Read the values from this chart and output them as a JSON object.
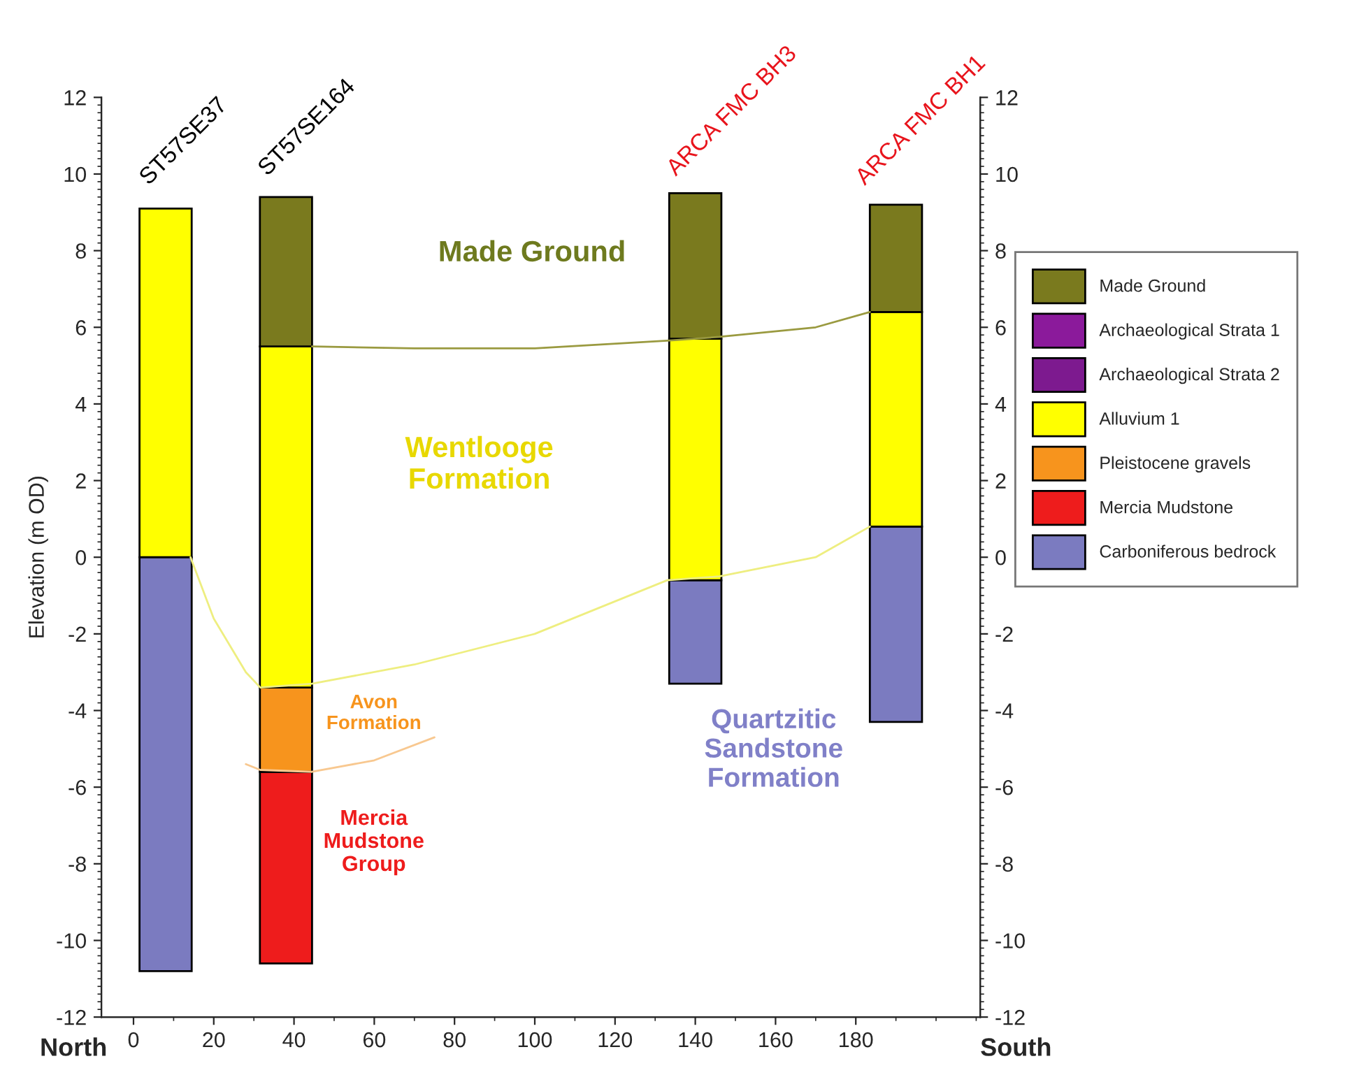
{
  "chart_data": {
    "type": "bar",
    "ylabel": "Elevation (m OD)",
    "x": [
      8,
      38,
      140,
      190
    ],
    "series": [
      {
        "name": "Carboniferous bedrock",
        "color": "#7b7bc0",
        "base": [
          -10.8,
          null,
          -3.3,
          -4.3
        ],
        "values": [
          10.8,
          null,
          2.7,
          5.1
        ]
      },
      {
        "name": "Mercia Mudstone",
        "color": "#ee1c1c",
        "base": [
          null,
          -10.6,
          null,
          null
        ],
        "values": [
          null,
          5.0,
          null,
          null
        ]
      },
      {
        "name": "Pleistocene gravels",
        "color": "#f7941d",
        "base": [
          null,
          -5.6,
          null,
          null
        ],
        "values": [
          null,
          2.2,
          null,
          null
        ]
      },
      {
        "name": "Alluvium 1",
        "color": "#ffff00",
        "base": [
          0,
          -3.4,
          -0.6,
          0.8
        ],
        "values": [
          9.1,
          8.9,
          6.3,
          5.6
        ]
      },
      {
        "name": "Archaeological Strata 2",
        "color": "#7d1a8f",
        "values": [
          null,
          null,
          null,
          null
        ]
      },
      {
        "name": "Archaeological Strata 1",
        "color": "#8b1a9b",
        "values": [
          null,
          null,
          null,
          null
        ]
      },
      {
        "name": "Made Ground",
        "color": "#7a7a1e",
        "base": [
          null,
          5.5,
          5.7,
          6.4
        ],
        "values": [
          null,
          3.9,
          3.8,
          2.8
        ]
      },
      {
        "type": "line",
        "color": "#9a9a40",
        "x": [
          44.5,
          70,
          100,
          133,
          146,
          170,
          183.5
        ],
        "values": [
          5.5,
          5.45,
          5.45,
          5.65,
          5.75,
          6.0,
          6.4
        ]
      },
      {
        "type": "line",
        "color": "#eeee80",
        "x": [
          14.2,
          20,
          28,
          31.6,
          44.5,
          70,
          100,
          133,
          146,
          170,
          183.5
        ],
        "values": [
          0,
          -1.6,
          -3.0,
          -3.4,
          -3.3,
          -2.8,
          -2.0,
          -0.6,
          -0.5,
          0,
          0.8
        ]
      },
      {
        "type": "line",
        "color": "#f8c890",
        "x": [
          28,
          31.6,
          44.5,
          60,
          75
        ],
        "values": [
          -5.4,
          -5.55,
          -5.6,
          -5.3,
          -4.7
        ]
      }
    ],
    "xlim": [
      -8,
      211
    ],
    "xticks": [
      0,
      20,
      40,
      60,
      80,
      100,
      120,
      140,
      160,
      180
    ],
    "ylim": [
      -12,
      12
    ],
    "yticks": [
      -12,
      -10,
      -8,
      -6,
      -4,
      -2,
      0,
      2,
      4,
      6,
      8,
      10,
      12
    ],
    "y2lim": [
      -12,
      12
    ],
    "y2ticks": [
      -12,
      -10,
      -8,
      -6,
      -4,
      -2,
      0,
      2,
      4,
      6,
      8,
      10,
      12
    ],
    "legend": "right",
    "annotations": [
      "ST57SE37",
      "ST57SE164",
      "ARCA FMC BH3",
      "ARCA FMC BH1",
      "Made Ground",
      "Wentlooge\nFormation",
      "Avon\nFormation",
      "Mercia\nMudstone\nGroup",
      "Quartzitic\nSandstone\nFormation",
      "North",
      "South"
    ]
  }
}
